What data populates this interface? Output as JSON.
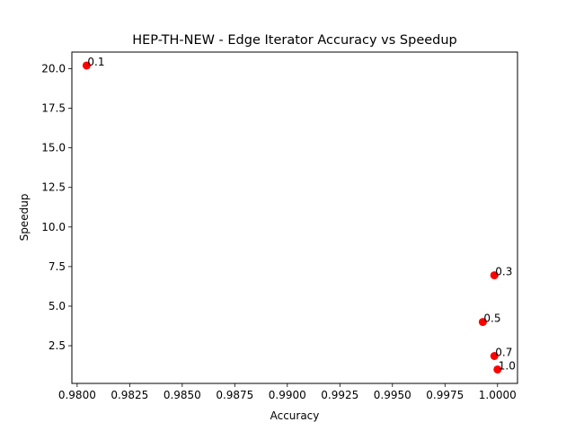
{
  "chart_data": {
    "type": "scatter",
    "title": "HEP-TH-NEW - Edge Iterator Accuracy vs Speedup",
    "xlabel": "Accuracy",
    "ylabel": "Speedup",
    "xlim": [
      0.97975,
      1.00095
    ],
    "ylim": [
      0.12,
      21.05
    ],
    "xticks": [
      0.98,
      0.9825,
      0.985,
      0.9875,
      0.99,
      0.9925,
      0.995,
      0.9975,
      1.0
    ],
    "xtick_labels": [
      "0.9800",
      "0.9825",
      "0.9850",
      "0.9875",
      "0.9900",
      "0.9925",
      "0.9950",
      "0.9975",
      "1.0000"
    ],
    "yticks": [
      2.5,
      5.0,
      7.5,
      10.0,
      12.5,
      15.0,
      17.5,
      20.0
    ],
    "ytick_labels": [
      "2.5",
      "5.0",
      "7.5",
      "10.0",
      "12.5",
      "15.0",
      "17.5",
      "20.0"
    ],
    "grid": false,
    "marker_color": "#ff0000",
    "points": [
      {
        "x": 0.98045,
        "y": 20.2,
        "label": "0.1"
      },
      {
        "x": 0.99985,
        "y": 6.95,
        "label": "0.3"
      },
      {
        "x": 0.9993,
        "y": 4.0,
        "label": "0.5"
      },
      {
        "x": 0.99985,
        "y": 1.85,
        "label": "0.7"
      },
      {
        "x": 1.0,
        "y": 1.0,
        "label": "1.0"
      }
    ]
  }
}
